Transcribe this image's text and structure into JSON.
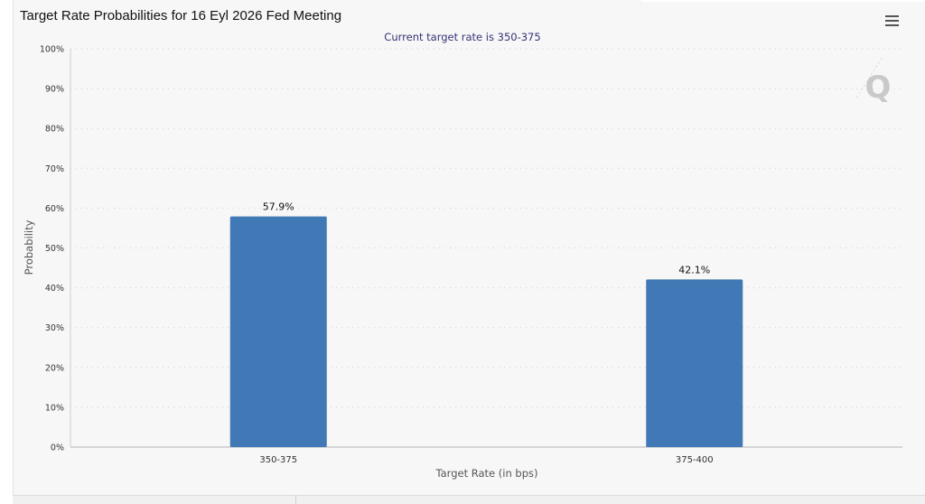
{
  "chart_data": {
    "type": "bar",
    "title": "Target Rate Probabilities for 16 Eyl 2026 Fed Meeting",
    "subtitle": "Current target rate is 350-375",
    "xlabel": "Target Rate (in bps)",
    "ylabel": "Probability",
    "categories": [
      "350-375",
      "375-400"
    ],
    "values": [
      57.9,
      42.1
    ],
    "data_labels": [
      "57.9%",
      "42.1%"
    ],
    "ylim": [
      0,
      100
    ],
    "y_ticks": [
      0,
      10,
      20,
      30,
      40,
      50,
      60,
      70,
      80,
      90,
      100
    ],
    "y_tick_labels": [
      "0%",
      "10%",
      "20%",
      "30%",
      "40%",
      "50%",
      "60%",
      "70%",
      "80%",
      "90%",
      "100%"
    ],
    "grid": true,
    "legend": "none",
    "bar_color": "#4079b5"
  },
  "toolbar": {
    "menu_icon": "hamburger-menu-icon"
  },
  "watermark": {
    "icon": "q-logo-icon"
  }
}
